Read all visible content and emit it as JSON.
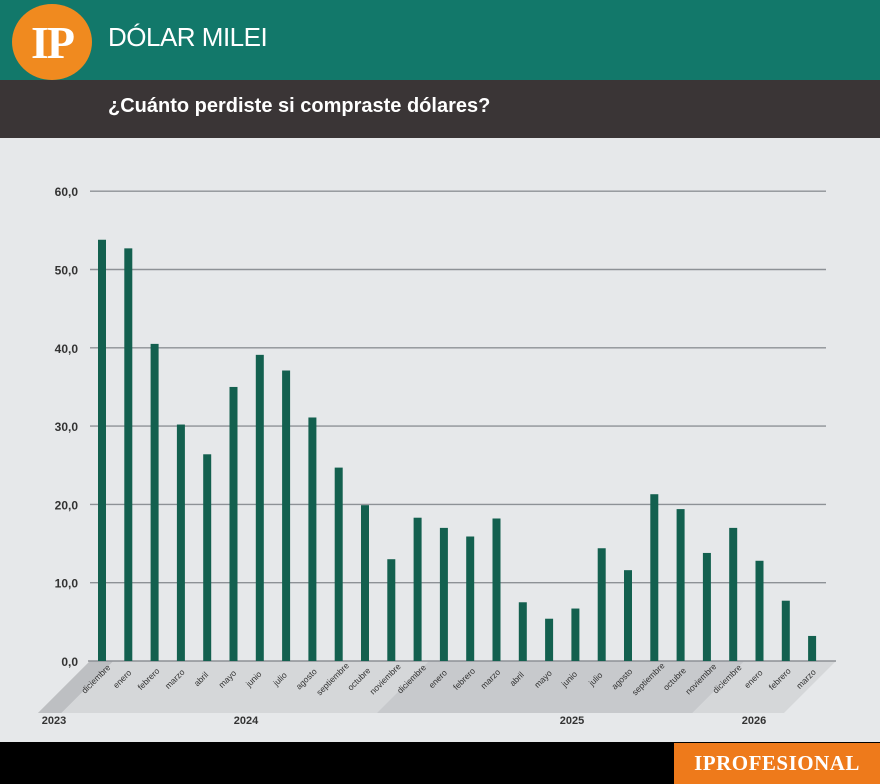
{
  "header": {
    "logo_text": "IP",
    "brand_title": "DÓLAR MILEI",
    "subtitle": "¿Cuánto perdiste si compraste dólares?"
  },
  "footer": {
    "brand": "IPROFESIONAL"
  },
  "colors": {
    "header_bg": "#12786a",
    "subbar_bg": "#3a3536",
    "logo": "#f08a1f",
    "bar": "#13604f",
    "footer_brand": "#ee7a1b"
  },
  "chart_data": {
    "type": "bar",
    "title": "",
    "xlabel": "",
    "ylabel": "",
    "ylim": [
      0,
      60
    ],
    "yticks": [
      "0,0",
      "10,0",
      "20,0",
      "30,0",
      "40,0",
      "50,0",
      "60,0"
    ],
    "grid": true,
    "categories": [
      "diciembre",
      "enero",
      "febrero",
      "marzo",
      "abril",
      "mayo",
      "junio",
      "julio",
      "agosto",
      "septiembre",
      "octubre",
      "noviembre",
      "diciembre",
      "enero",
      "febrero",
      "marzo",
      "abril",
      "mayo",
      "junio",
      "julio",
      "agosto",
      "septiembre",
      "octubre",
      "noviembre",
      "diciembre",
      "enero",
      "febrero",
      "marzo"
    ],
    "values": [
      53.8,
      52.7,
      40.5,
      30.2,
      26.4,
      35.0,
      39.1,
      37.1,
      31.1,
      24.7,
      19.9,
      13.0,
      18.3,
      17.0,
      15.9,
      18.2,
      7.5,
      5.4,
      6.7,
      14.4,
      11.6,
      21.3,
      19.4,
      13.8,
      17.0,
      12.8,
      7.7,
      3.2
    ],
    "years": [
      {
        "label": "2023",
        "from": 0,
        "to": 0
      },
      {
        "label": "2024",
        "from": 1,
        "to": 12
      },
      {
        "label": "2025",
        "from": 13,
        "to": 24
      },
      {
        "label": "2026",
        "from": 25,
        "to": 27
      }
    ]
  }
}
